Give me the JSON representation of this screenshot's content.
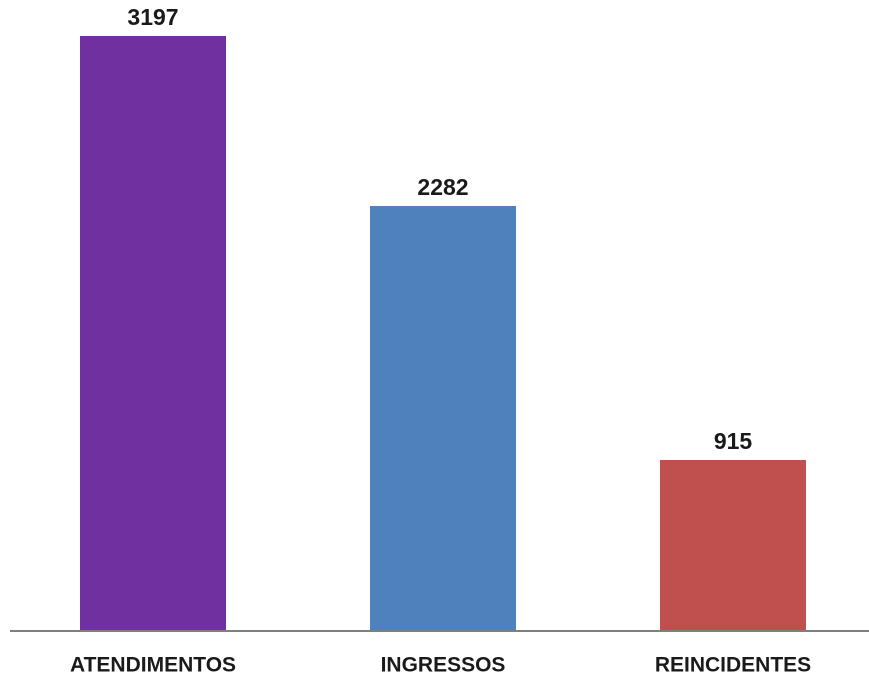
{
  "chart_data": {
    "type": "bar",
    "categories": [
      "ATENDIMENTOS",
      "INGRESSOS",
      "REINCIDENTES"
    ],
    "values": [
      3197,
      2282,
      915
    ],
    "colors": [
      "#7030a0",
      "#4f81bd",
      "#c0504d"
    ]
  }
}
